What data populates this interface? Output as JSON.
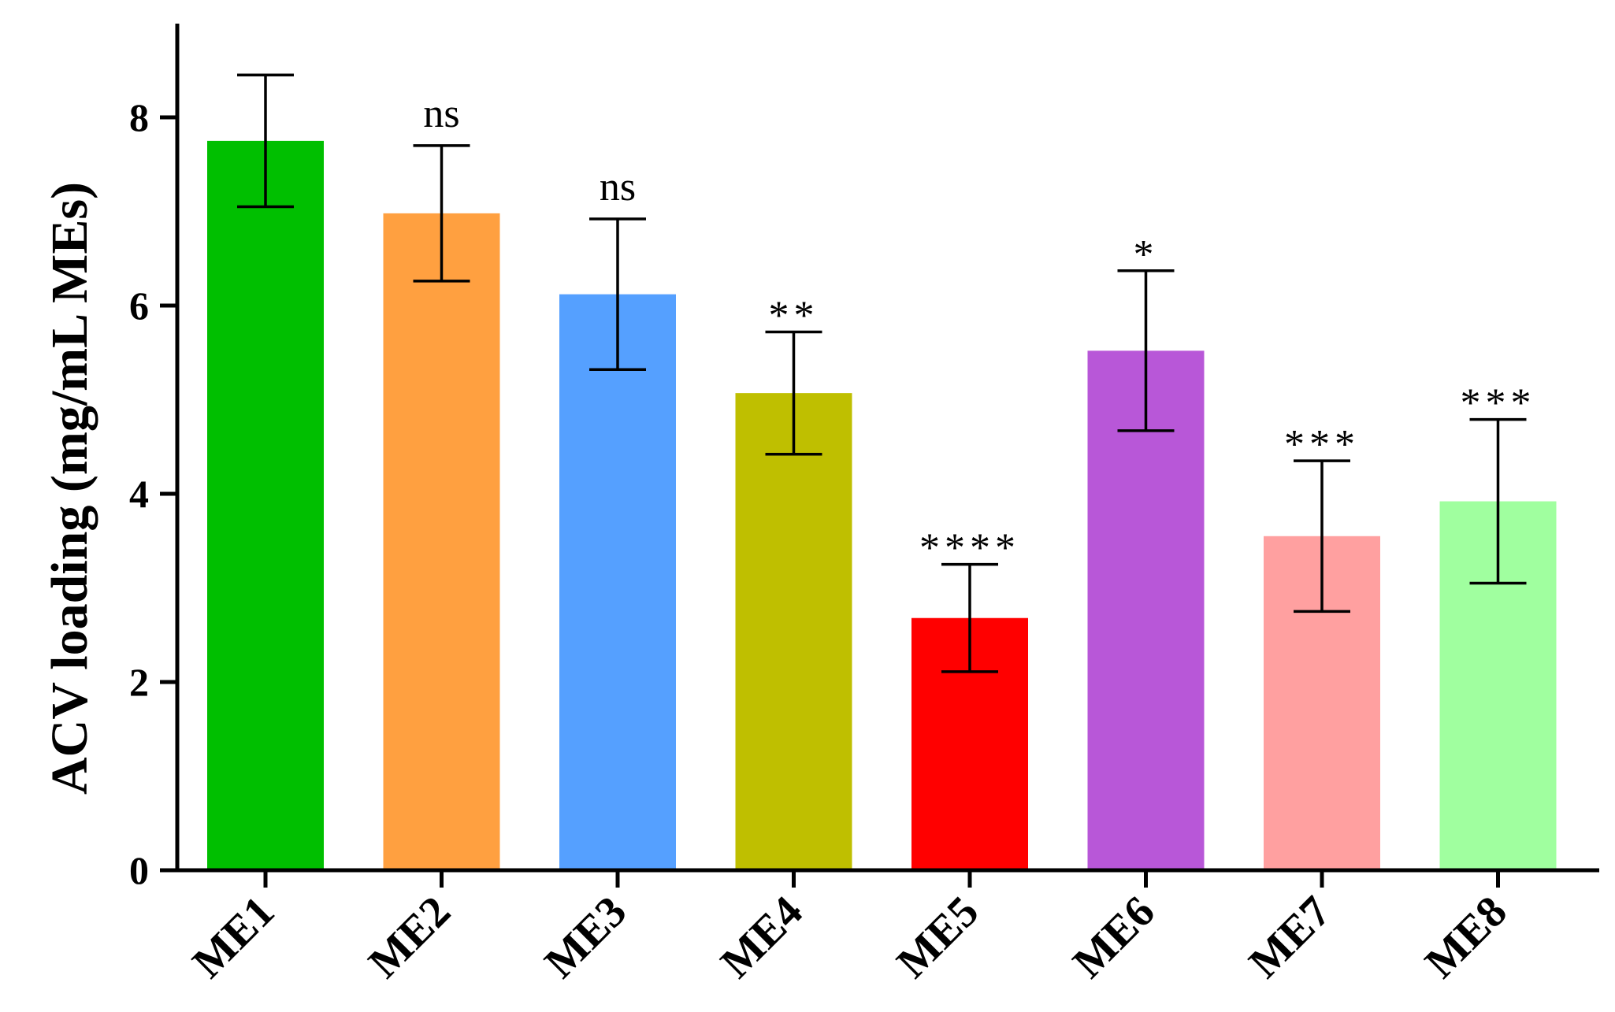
{
  "chart_data": {
    "type": "bar",
    "title": "",
    "xlabel": "",
    "ylabel": "ACV loading (mg/mL MEs)",
    "ylim": [
      0,
      9
    ],
    "yticks": [
      0,
      2,
      4,
      6,
      8
    ],
    "grid": false,
    "categories": [
      "ME1",
      "ME2",
      "ME3",
      "ME4",
      "ME5",
      "ME6",
      "ME7",
      "ME8"
    ],
    "values": [
      7.75,
      6.98,
      6.12,
      5.07,
      2.68,
      5.52,
      3.55,
      3.92
    ],
    "errors": [
      0.7,
      0.72,
      0.8,
      0.65,
      0.57,
      0.85,
      0.8,
      0.87
    ],
    "significance": [
      "",
      "ns",
      "ns",
      "**",
      "****",
      "*",
      "***",
      "***"
    ],
    "colors": [
      "#00bf00",
      "#ffa040",
      "#55a0ff",
      "#bfbf00",
      "#ff0000",
      "#b857d8",
      "#ffa0a0",
      "#a0ff9f"
    ]
  }
}
